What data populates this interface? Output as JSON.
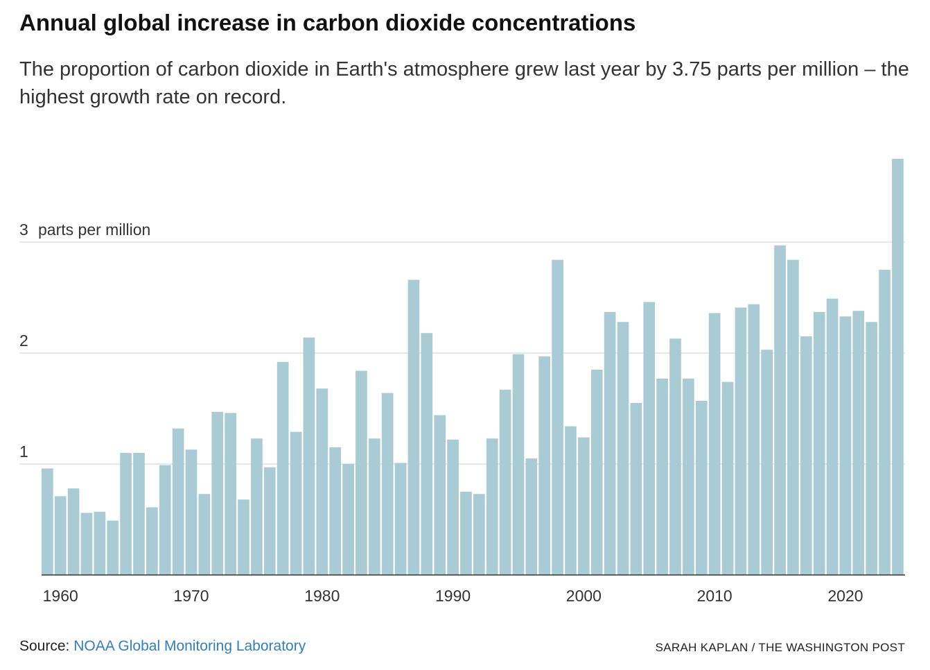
{
  "title": "Annual global increase in carbon dioxide concentrations",
  "subtitle": "The proportion of carbon dioxide in Earth's atmosphere grew last year by 3.75 parts per million – the highest growth rate on record.",
  "footer": {
    "source_label": "Source:",
    "source_name": "NOAA Global Monitoring Laboratory",
    "credit": "SARAH KAPLAN / THE WASHINGTON POST"
  },
  "colors": {
    "bar": "#a9cbd4",
    "grid": "#d9d9d9",
    "axis": "#333333"
  },
  "chart_data": {
    "type": "bar",
    "title": "Annual global increase in carbon dioxide concentrations",
    "xlabel": "",
    "ylabel": "parts per million",
    "unit_label": "parts per million",
    "ylim": [
      0,
      3.8
    ],
    "yticks": [
      1,
      2,
      3
    ],
    "xticks": [
      1960,
      1970,
      1980,
      1990,
      2000,
      2010,
      2020
    ],
    "grid": true,
    "categories": [
      1959,
      1960,
      1961,
      1962,
      1963,
      1964,
      1965,
      1966,
      1967,
      1968,
      1969,
      1970,
      1971,
      1972,
      1973,
      1974,
      1975,
      1976,
      1977,
      1978,
      1979,
      1980,
      1981,
      1982,
      1983,
      1984,
      1985,
      1986,
      1987,
      1988,
      1989,
      1990,
      1991,
      1992,
      1993,
      1994,
      1995,
      1996,
      1997,
      1998,
      1999,
      2000,
      2001,
      2002,
      2003,
      2004,
      2005,
      2006,
      2007,
      2008,
      2009,
      2010,
      2011,
      2012,
      2013,
      2014,
      2015,
      2016,
      2017,
      2018,
      2019,
      2020,
      2021,
      2022,
      2023,
      2024
    ],
    "values": [
      0.96,
      0.71,
      0.78,
      0.56,
      0.57,
      0.49,
      1.1,
      1.1,
      0.61,
      0.99,
      1.32,
      1.13,
      0.73,
      1.47,
      1.46,
      0.68,
      1.23,
      0.97,
      1.92,
      1.29,
      2.14,
      1.68,
      1.15,
      1.0,
      1.84,
      1.23,
      1.64,
      1.01,
      2.66,
      2.18,
      1.44,
      1.22,
      0.75,
      0.73,
      1.23,
      1.67,
      1.99,
      1.05,
      1.97,
      2.84,
      1.34,
      1.24,
      1.85,
      2.37,
      2.28,
      1.55,
      2.46,
      1.77,
      2.13,
      1.77,
      1.57,
      2.36,
      1.74,
      2.41,
      2.44,
      2.03,
      2.97,
      2.84,
      2.15,
      2.37,
      2.49,
      2.33,
      2.38,
      2.28,
      2.75,
      3.75
    ]
  }
}
